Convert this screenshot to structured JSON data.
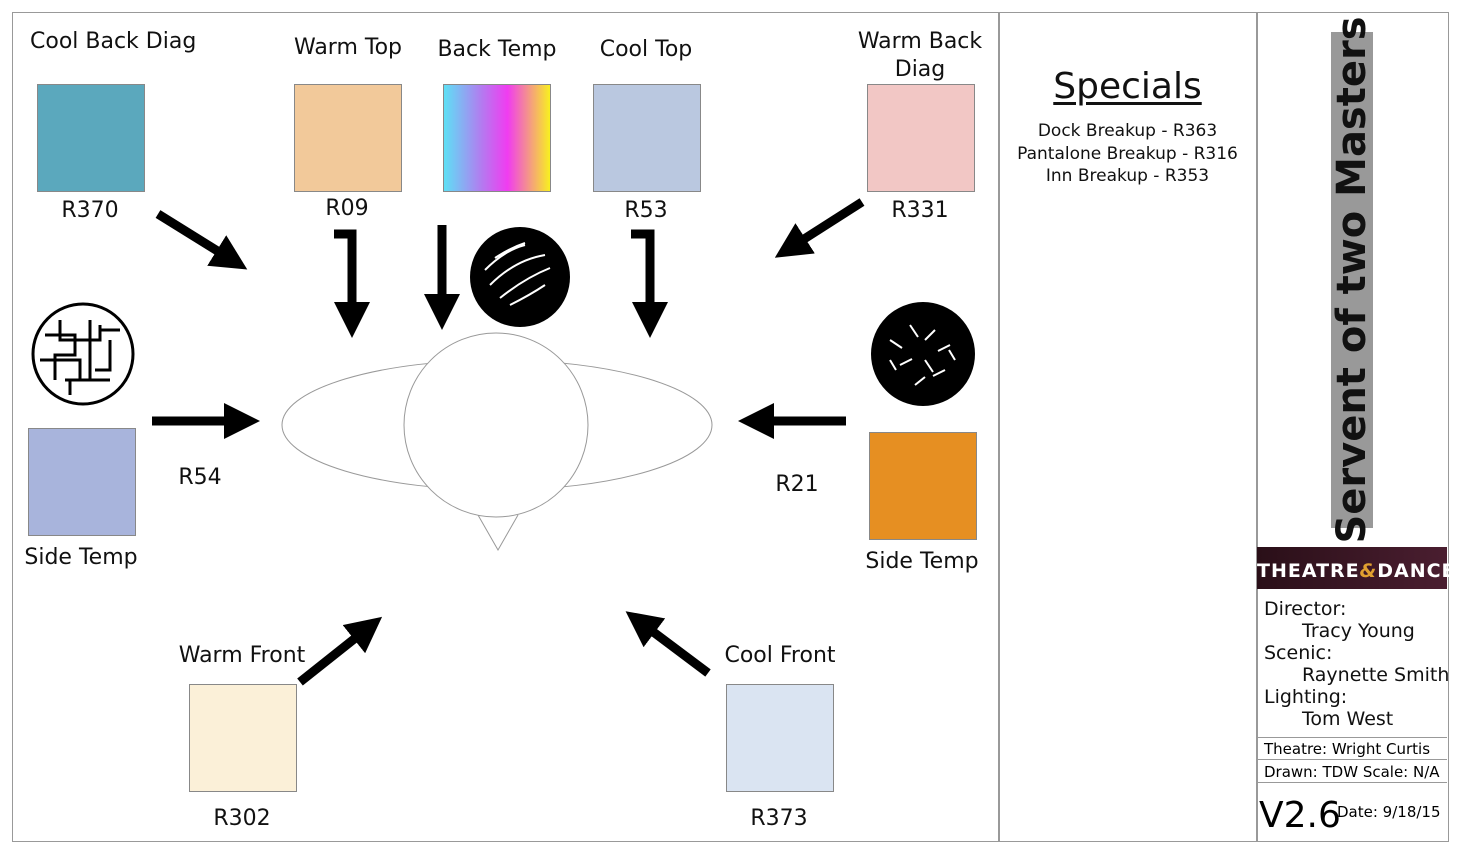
{
  "positions": [
    {
      "label": "Cool Back Diag",
      "gel": "R370",
      "color": "#5ba8bd"
    },
    {
      "label": "Warm Top",
      "gel": "R09",
      "color": "#f2c99a"
    },
    {
      "label": "Back Temp",
      "gel": "",
      "color": "gradient"
    },
    {
      "label": "Cool Top",
      "gel": "R53",
      "color": "#bac8e0"
    },
    {
      "label": "Warm Back Diag",
      "gel": "R331",
      "color": "#f2c7c5"
    },
    {
      "label": "Side Temp",
      "gel": "R54",
      "color": "#a8b4dc"
    },
    {
      "label": "Side Temp",
      "gel": "R21",
      "color": "#e68f22"
    },
    {
      "label": "Warm Front",
      "gel": "R302",
      "color": "#fbf0d8"
    },
    {
      "label": "Cool Front",
      "gel": "R373",
      "color": "#dae4f2"
    }
  ],
  "specials": {
    "title": "Specials",
    "items": [
      "Dock Breakup - R363",
      "Pantalone Breakup - R316",
      "Inn Breakup - R353"
    ]
  },
  "title_block": {
    "show_title": "Servent of two Masters",
    "logo": "School of THEATRE & DANCE Kent State University",
    "director_label": "Director:",
    "director": "Tracy Young",
    "scenic_label": "Scenic:",
    "scenic": "Raynette Smith",
    "lighting_label": "Lighting:",
    "lighting": "Tom West",
    "theatre": "Theatre: Wright Curtis",
    "drawn": "Drawn: TDW Scale: N/A",
    "version": "V2.6",
    "date": "Date: 9/18/15"
  }
}
